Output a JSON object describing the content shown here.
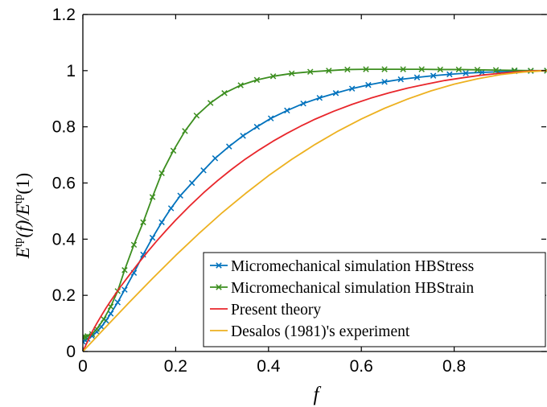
{
  "chart_data": {
    "type": "line",
    "xlabel": "f",
    "ylabel_main": "E",
    "ylabel_sup1": "tp",
    "ylabel_mid": "(f)/E",
    "ylabel_sup2": "tp",
    "ylabel_end": "(1)",
    "xlim": [
      0,
      1
    ],
    "ylim": [
      0,
      1.2
    ],
    "xticks": [
      "0",
      "0.2",
      "0.4",
      "0.6",
      "0.8"
    ],
    "xtick_values": [
      0,
      0.2,
      0.4,
      0.6,
      0.8
    ],
    "yticks": [
      "0",
      "0.2",
      "0.4",
      "0.6",
      "0.8",
      "1",
      "1.2"
    ],
    "ytick_values": [
      0,
      0.2,
      0.4,
      0.6,
      0.8,
      1.0,
      1.2
    ],
    "legend_position": "bottom-right",
    "series": [
      {
        "name": "Micromechanical simulation HBStress",
        "color": "#0072BD",
        "marker": "x",
        "x": [
          0,
          0.005,
          0.01,
          0.02,
          0.03,
          0.04,
          0.05,
          0.06,
          0.075,
          0.09,
          0.11,
          0.13,
          0.15,
          0.17,
          0.19,
          0.21,
          0.235,
          0.26,
          0.285,
          0.315,
          0.345,
          0.375,
          0.405,
          0.44,
          0.475,
          0.51,
          0.545,
          0.58,
          0.615,
          0.65,
          0.685,
          0.72,
          0.755,
          0.79,
          0.825,
          0.86,
          0.895,
          0.93,
          0.965,
          1.0
        ],
        "y": [
          0.035,
          0.04,
          0.045,
          0.055,
          0.07,
          0.088,
          0.11,
          0.135,
          0.175,
          0.22,
          0.28,
          0.345,
          0.405,
          0.46,
          0.51,
          0.555,
          0.6,
          0.645,
          0.688,
          0.73,
          0.768,
          0.8,
          0.83,
          0.858,
          0.883,
          0.903,
          0.92,
          0.936,
          0.949,
          0.96,
          0.969,
          0.976,
          0.982,
          0.987,
          0.991,
          0.994,
          0.996,
          0.998,
          0.999,
          1.0
        ]
      },
      {
        "name": "Micromechanical simulation HBStrain",
        "color": "#3C8E1F",
        "marker": "x",
        "x": [
          0,
          0.005,
          0.01,
          0.02,
          0.03,
          0.045,
          0.06,
          0.075,
          0.09,
          0.11,
          0.13,
          0.15,
          0.17,
          0.195,
          0.22,
          0.245,
          0.275,
          0.305,
          0.34,
          0.375,
          0.41,
          0.45,
          0.49,
          0.53,
          0.57,
          0.61,
          0.65,
          0.69,
          0.73,
          0.77,
          0.81,
          0.85,
          0.89,
          0.93,
          0.965,
          1.0
        ],
        "y": [
          0.05,
          0.052,
          0.055,
          0.062,
          0.08,
          0.115,
          0.16,
          0.215,
          0.29,
          0.38,
          0.46,
          0.55,
          0.635,
          0.715,
          0.785,
          0.84,
          0.885,
          0.92,
          0.948,
          0.967,
          0.98,
          0.99,
          0.996,
          1.0,
          1.004,
          1.005,
          1.005,
          1.005,
          1.005,
          1.004,
          1.004,
          1.003,
          1.002,
          1.001,
          1.0,
          1.0
        ]
      },
      {
        "name": "Present theory",
        "color": "#E8262B",
        "marker": "none",
        "x": [
          0,
          0.01,
          0.02,
          0.03,
          0.04,
          0.05,
          0.06,
          0.08,
          0.1,
          0.12,
          0.14,
          0.16,
          0.18,
          0.2,
          0.23,
          0.26,
          0.29,
          0.32,
          0.35,
          0.38,
          0.41,
          0.44,
          0.47,
          0.5,
          0.54,
          0.58,
          0.62,
          0.66,
          0.7,
          0.74,
          0.78,
          0.82,
          0.86,
          0.9,
          0.94,
          0.97,
          1.0
        ],
        "y": [
          0.0,
          0.035,
          0.07,
          0.1,
          0.128,
          0.155,
          0.18,
          0.228,
          0.272,
          0.315,
          0.356,
          0.395,
          0.432,
          0.468,
          0.518,
          0.565,
          0.608,
          0.648,
          0.685,
          0.718,
          0.749,
          0.777,
          0.803,
          0.827,
          0.855,
          0.88,
          0.902,
          0.921,
          0.938,
          0.952,
          0.965,
          0.975,
          0.984,
          0.991,
          0.996,
          0.999,
          1.0
        ]
      },
      {
        "name": "Desalos (1981)'s experiment",
        "color": "#EDB120",
        "marker": "none",
        "x": [
          0,
          0.05,
          0.1,
          0.15,
          0.2,
          0.25,
          0.3,
          0.35,
          0.4,
          0.45,
          0.5,
          0.55,
          0.6,
          0.65,
          0.7,
          0.75,
          0.8,
          0.85,
          0.9,
          0.95,
          1.0
        ],
        "y": [
          0.0,
          0.088,
          0.175,
          0.26,
          0.342,
          0.42,
          0.494,
          0.562,
          0.626,
          0.684,
          0.737,
          0.785,
          0.828,
          0.866,
          0.899,
          0.928,
          0.952,
          0.971,
          0.986,
          0.995,
          1.0
        ]
      }
    ]
  }
}
